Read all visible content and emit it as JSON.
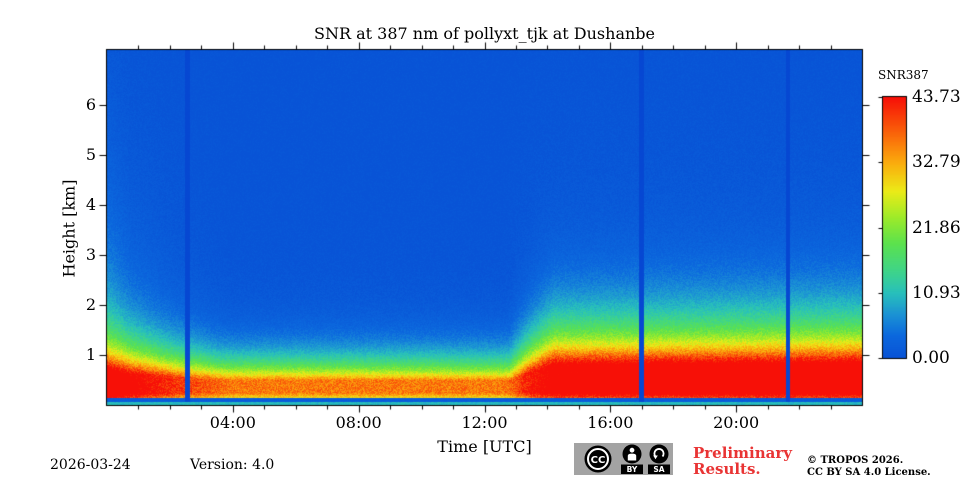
{
  "footer": {
    "date": "2026-03-24",
    "version": "Version: 4.0"
  },
  "preliminary": {
    "line1": "Preliminary",
    "line2": "Results."
  },
  "copyright": {
    "line1": "© TROPOS 2026.",
    "line2": "CC BY SA 4.0 License."
  },
  "license_badge": {
    "cc": "CC",
    "by": "BY",
    "sa": "SA"
  },
  "chart_data": {
    "type": "heatmap",
    "title": "SNR at 387 nm of pollyxt_tjk at Dushanbe",
    "xlabel": "Time [UTC]",
    "ylabel": "Height [km]",
    "x_range_hours": [
      0,
      24
    ],
    "y_range_km": [
      0,
      7.1
    ],
    "x_major_ticks": [
      {
        "label": "04:00",
        "hour": 4
      },
      {
        "label": "08:00",
        "hour": 8
      },
      {
        "label": "12:00",
        "hour": 12
      },
      {
        "label": "16:00",
        "hour": 16
      },
      {
        "label": "20:00",
        "hour": 20
      }
    ],
    "x_minor_interval_hours": 1,
    "y_major_ticks": [
      {
        "label": "1",
        "km": 1
      },
      {
        "label": "2",
        "km": 2
      },
      {
        "label": "3",
        "km": 3
      },
      {
        "label": "4",
        "km": 4
      },
      {
        "label": "5",
        "km": 5
      },
      {
        "label": "6",
        "km": 6
      }
    ],
    "colorbar": {
      "label": "SNR387",
      "vmin": 0,
      "vmax": 43.73,
      "ticks": [
        {
          "label": "43.73",
          "value": 43.73
        },
        {
          "label": "32.79",
          "value": 32.79
        },
        {
          "label": "21.86",
          "value": 21.86
        },
        {
          "label": "10.93",
          "value": 10.93
        },
        {
          "label": "0.00",
          "value": 0
        }
      ],
      "colormap_stops": [
        [
          0.0,
          [
            8,
            83,
            214
          ]
        ],
        [
          0.09,
          [
            12,
            105,
            222
          ]
        ],
        [
          0.17,
          [
            28,
            148,
            212
          ]
        ],
        [
          0.25,
          [
            40,
            192,
            188
          ]
        ],
        [
          0.33,
          [
            62,
            212,
            140
          ]
        ],
        [
          0.44,
          [
            92,
            226,
            78
          ]
        ],
        [
          0.54,
          [
            158,
            235,
            42
          ]
        ],
        [
          0.64,
          [
            236,
            235,
            24
          ]
        ],
        [
          0.74,
          [
            250,
            178,
            14
          ]
        ],
        [
          0.85,
          [
            250,
            108,
            10
          ]
        ],
        [
          1.0,
          [
            247,
            16,
            7
          ]
        ]
      ]
    },
    "field_model": {
      "description": "Near-surface aerosol layer with high SNR (red band ~0.15-0.8 km), SNR suppressed aloft during daylight ~04:00-13:00, enhanced after ~13:30 and before ~02:00; thin teal strip at ground; deep-blue depolarization-calibration gaps.",
      "layer_top_km": [
        [
          0,
          1.3
        ],
        [
          2,
          1.12
        ],
        [
          3.5,
          1.0
        ],
        [
          12.8,
          0.98
        ],
        [
          13.4,
          1.3
        ],
        [
          14.2,
          1.62
        ],
        [
          24,
          1.68
        ]
      ],
      "layer_amp": [
        [
          0,
          40
        ],
        [
          2.5,
          37.5
        ],
        [
          4,
          35.5
        ],
        [
          12.8,
          35.5
        ],
        [
          13.5,
          41
        ],
        [
          14.2,
          44
        ],
        [
          24,
          44
        ]
      ],
      "glow_amp": [
        [
          0,
          11
        ],
        [
          0.9,
          9.5
        ],
        [
          1.8,
          5.5
        ],
        [
          2.8,
          2.8
        ],
        [
          4,
          1.0
        ],
        [
          12.6,
          1.0
        ],
        [
          13.05,
          2.8
        ],
        [
          13.8,
          4.6
        ],
        [
          16,
          5.0
        ],
        [
          24,
          5.2
        ]
      ],
      "glow_scale_km": 2.2,
      "ground_strip_top_km": 0.055,
      "ground_strip_value": 10.5,
      "gap_strip_top_km": 0.145,
      "gap_strip_value": 1.6,
      "left_column_end_hour": 0.8,
      "left_column_amp": 5,
      "left_column_scale_km": 3.5,
      "calibration_stripe_hours": [
        2.55,
        17.0,
        21.65
      ],
      "calibration_stripe_halfwidth_hours": 0.075
    }
  }
}
